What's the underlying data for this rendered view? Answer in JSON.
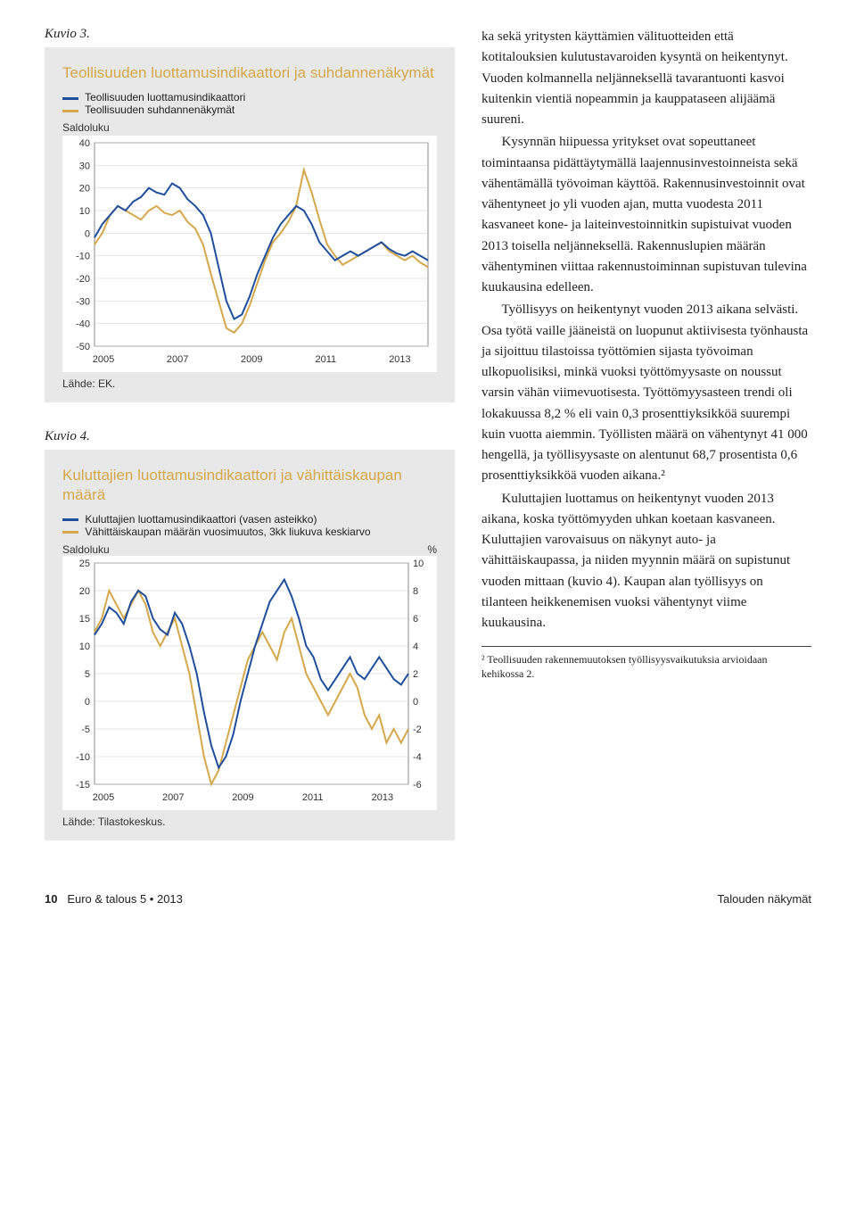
{
  "kuvio3": {
    "label": "Kuvio 3.",
    "title": "Teollisuuden luottamusindikaattori ja suhdannenäkymät",
    "legend": [
      {
        "label": "Teollisuuden luottamusindikaattori",
        "color": "#1f4e9c"
      },
      {
        "label": "Teollisuuden suhdannenäkymät",
        "color": "#d4a84b"
      }
    ],
    "yaxis_title": "Saldoluku",
    "ylim": [
      -50,
      40
    ],
    "ytick_step": 10,
    "xvalues": [
      2005,
      2007,
      2009,
      2011,
      2013
    ],
    "series1_color": "#1f4e9c",
    "series2_color": "#d4a84b",
    "series1": [
      -2,
      4,
      8,
      12,
      10,
      14,
      16,
      20,
      18,
      17,
      22,
      20,
      15,
      12,
      8,
      0,
      -15,
      -30,
      -38,
      -36,
      -28,
      -18,
      -10,
      -2,
      4,
      8,
      12,
      10,
      4,
      -4,
      -8,
      -12,
      -10,
      -8,
      -10,
      -8,
      -6,
      -4,
      -7,
      -9,
      -10,
      -8,
      -10,
      -12
    ],
    "series2": [
      -5,
      0,
      8,
      12,
      10,
      8,
      6,
      10,
      12,
      9,
      8,
      10,
      5,
      2,
      -5,
      -18,
      -30,
      -42,
      -44,
      -40,
      -32,
      -22,
      -12,
      -4,
      0,
      5,
      12,
      28,
      18,
      6,
      -5,
      -10,
      -14,
      -12,
      -10,
      -8,
      -6,
      -4,
      -8,
      -10,
      -12,
      -10,
      -13,
      -15
    ],
    "source": "Lähde: EK.",
    "line_width": 2,
    "bg": "#ffffff",
    "grid_color": "#999"
  },
  "kuvio4": {
    "label": "Kuvio 4.",
    "title": "Kuluttajien luottamusindikaattori ja vähittäiskaupan määrä",
    "legend": [
      {
        "label": "Kuluttajien luottamusindikaattori (vasen asteikko)",
        "color": "#1f4e9c"
      },
      {
        "label": "Vähittäiskaupan määrän vuosimuutos, 3kk liukuva keskiarvo",
        "color": "#d4a84b"
      }
    ],
    "yaxis_title_left": "Saldoluku",
    "yaxis_title_right": "%",
    "ylim_left": [
      -15,
      25
    ],
    "ytick_step_left": 5,
    "ylim_right": [
      -6,
      10
    ],
    "ytick_step_right": 2,
    "xvalues": [
      2005,
      2007,
      2009,
      2011,
      2013
    ],
    "series1_color": "#1f4e9c",
    "series2_color": "#d4a84b",
    "series1": [
      12,
      14,
      17,
      16,
      14,
      18,
      20,
      19,
      15,
      13,
      12,
      16,
      14,
      10,
      5,
      -2,
      -8,
      -12,
      -10,
      -6,
      0,
      5,
      10,
      14,
      18,
      20,
      22,
      19,
      15,
      10,
      8,
      4,
      2,
      4,
      6,
      8,
      5,
      4,
      6,
      8,
      6,
      4,
      3,
      5
    ],
    "series2": [
      5,
      6,
      8,
      7,
      6,
      7,
      8,
      7,
      5,
      4,
      5,
      6,
      4,
      2,
      -1,
      -4,
      -6,
      -5,
      -3,
      -1,
      1,
      3,
      4,
      5,
      4,
      3,
      5,
      6,
      4,
      2,
      1,
      0,
      -1,
      0,
      1,
      2,
      1,
      -1,
      -2,
      -1,
      -3,
      -2,
      -3,
      -2
    ],
    "source": "Lähde: Tilastokeskus.",
    "line_width": 2,
    "bg": "#ffffff",
    "grid_color": "#999"
  },
  "body_text": {
    "p1": "ka sekä yritysten käyttämien välituotteiden että kotitalouksien kulutustavaroiden kysyntä on heikentynyt. Vuoden kolmannella neljänneksellä tavarantuonti kasvoi kuitenkin vientiä nopeammin ja kauppataseen alijäämä suureni.",
    "p2": "Kysynnän hiipuessa yritykset ovat sopeuttaneet toimintaansa pidättäytymällä laajennusinvestoinneista sekä vähentämällä työvoiman käyttöä. Rakennusinvestoinnit ovat vähentyneet jo yli vuoden ajan, mutta vuodesta 2011 kasvaneet kone- ja laiteinvestoinnitkin supistuivat vuoden 2013 toisella neljänneksellä. Rakennuslupien määrän vähentyminen viittaa rakennustoiminnan supistuvan tulevina kuukausina edelleen.",
    "p3": "Työllisyys on heikentynyt vuoden 2013 aikana selvästi. Osa työtä vaille jääneistä on luopunut aktiivisesta työnhausta ja sijoittuu tilastoissa työttömien sijasta työvoiman ulkopuolisiksi, minkä vuoksi työttömyysaste on noussut varsin vähän viimevuotisesta. Työttömyysasteen trendi oli lokakuussa 8,2 % eli vain 0,3 prosenttiyksikköä suurempi kuin vuotta aiemmin. Työllisten määrä on vähentynyt 41 000 hengellä, ja työllisyysaste on alentunut 68,7 prosentista 0,6 prosenttiyksikköä vuoden aikana.²",
    "p4": "Kuluttajien luottamus on heikentynyt vuoden 2013 aikana, koska työttömyyden uhkan koetaan kasvaneen. Kuluttajien varovaisuus on näkynyt auto- ja vähittäiskaupassa, ja niiden myynnin määrä on supistunut vuoden mittaan (kuvio 4). Kaupan alan työllisyys on tilanteen heikkenemisen vuoksi vähentynyt viime kuukausina."
  },
  "footnote": "² Teollisuuden rakennemuutoksen työllisyysvaikutuksia arvioidaan kehikossa 2.",
  "footer": {
    "left_page": "10",
    "left_pub": "Euro & talous 5 • 2013",
    "right": "Talouden näkymät"
  }
}
